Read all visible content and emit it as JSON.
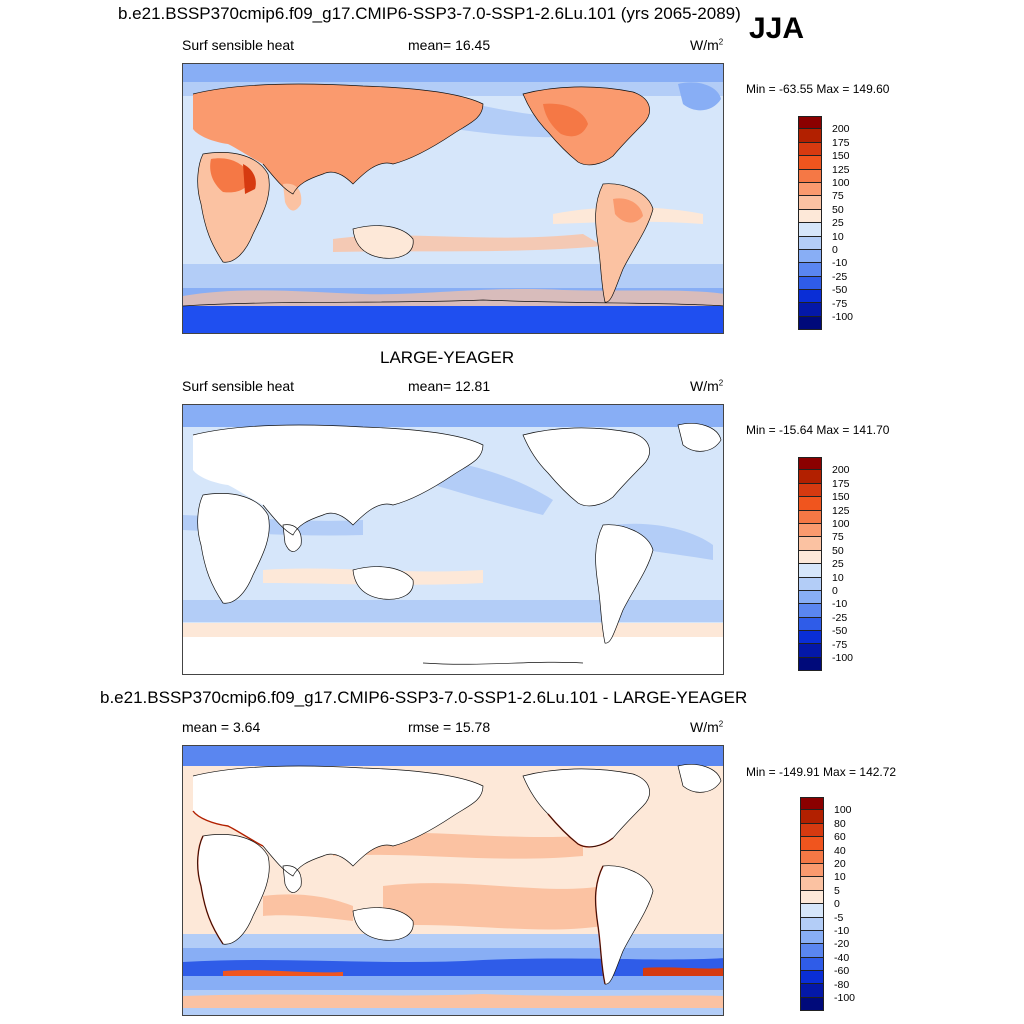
{
  "season": "JJA",
  "panels": [
    {
      "title": "b.e21.BSSP370cmip6.f09_g17.CMIP6-SSP3-7.0-SSP1-2.6Lu.101 (yrs 2065-2089)",
      "left_label": "Surf sensible heat",
      "center_label": "mean=  16.45",
      "units": "W/m",
      "units_sup": "2",
      "minmax": "Min = -63.55 Max = 149.60",
      "colorbar_labels": [
        "200",
        "175",
        "150",
        "125",
        "100",
        "75",
        "50",
        "25",
        "10",
        "0",
        "-10",
        "-25",
        "-50",
        "-75",
        "-100"
      ],
      "colors": [
        "#8b0000",
        "#b22000",
        "#d63a10",
        "#f0551e",
        "#f57845",
        "#fa9a6e",
        "#fbc2a2",
        "#fde8d8",
        "#d6e6fa",
        "#b3cdf7",
        "#88aef5",
        "#5a86f0",
        "#2f5ce8",
        "#0a2ed6",
        "#0418a8",
        "#000a7a"
      ]
    },
    {
      "title": "LARGE-YEAGER",
      "left_label": "Surf sensible heat",
      "center_label": "mean=  12.81",
      "units": "W/m",
      "units_sup": "2",
      "minmax": "Min = -15.64 Max = 141.70",
      "colorbar_labels": [
        "200",
        "175",
        "150",
        "125",
        "100",
        "75",
        "50",
        "25",
        "10",
        "0",
        "-10",
        "-25",
        "-50",
        "-75",
        "-100"
      ],
      "colors": [
        "#8b0000",
        "#b22000",
        "#d63a10",
        "#f0551e",
        "#f57845",
        "#fa9a6e",
        "#fbc2a2",
        "#fde8d8",
        "#d6e6fa",
        "#b3cdf7",
        "#88aef5",
        "#5a86f0",
        "#2f5ce8",
        "#0a2ed6",
        "#0418a8",
        "#000a7a"
      ]
    },
    {
      "title": "b.e21.BSSP370cmip6.f09_g17.CMIP6-SSP3-7.0-SSP1-2.6Lu.101 - LARGE-YEAGER",
      "left_label": "mean =   3.64",
      "center_label": "rmse =  15.78",
      "units": "W/m",
      "units_sup": "2",
      "minmax": "Min = -149.91 Max = 142.72",
      "colorbar_labels": [
        "100",
        "80",
        "60",
        "40",
        "20",
        "10",
        "5",
        "0",
        "-5",
        "-10",
        "-20",
        "-40",
        "-60",
        "-80",
        "-100"
      ],
      "colors": [
        "#8b0000",
        "#b22000",
        "#d63a10",
        "#f0551e",
        "#f57845",
        "#fa9a6e",
        "#fbc2a2",
        "#fde8d8",
        "#d6e6fa",
        "#b3cdf7",
        "#88aef5",
        "#5a86f0",
        "#2f5ce8",
        "#0a2ed6",
        "#0418a8",
        "#000a7a"
      ]
    }
  ]
}
